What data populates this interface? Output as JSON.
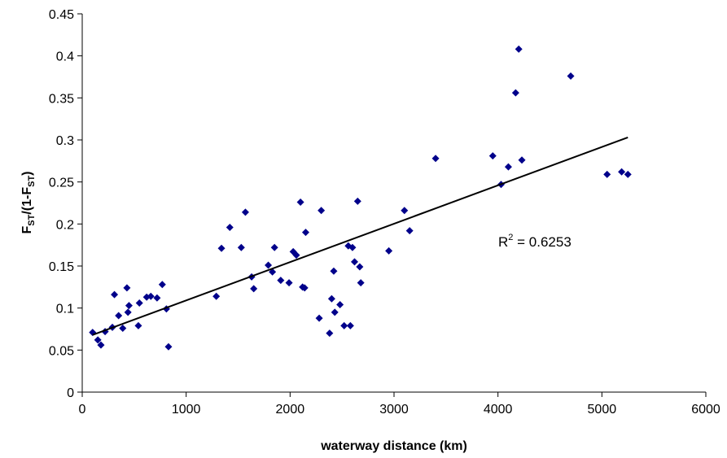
{
  "chart_data": {
    "type": "scatter",
    "xlabel": "waterway distance (km)",
    "ylabel_main": "F",
    "ylabel_sub1": "ST",
    "ylabel_mid": "/(1-F",
    "ylabel_sub2": "ST",
    "ylabel_end": ")",
    "xlim": [
      0,
      6000
    ],
    "ylim": [
      0,
      0.45
    ],
    "x_ticks": [
      "0",
      "1000",
      "2000",
      "3000",
      "4000",
      "5000",
      "6000"
    ],
    "y_ticks": [
      "0",
      "0.05",
      "0.1",
      "0.15",
      "0.2",
      "0.25",
      "0.3",
      "0.35",
      "0.4",
      "0.45"
    ],
    "grid": false,
    "marker": "diamond",
    "marker_color": "#00008B",
    "line_color": "#000000",
    "annotation_main": "R",
    "annotation_sup": "2",
    "annotation_rest": " = 0.6253",
    "trendline": {
      "x": [
        100,
        5250
      ],
      "y": [
        0.068,
        0.303
      ]
    },
    "points": [
      {
        "x": 100,
        "y": 0.071
      },
      {
        "x": 150,
        "y": 0.062
      },
      {
        "x": 180,
        "y": 0.056
      },
      {
        "x": 220,
        "y": 0.072
      },
      {
        "x": 290,
        "y": 0.077
      },
      {
        "x": 310,
        "y": 0.116
      },
      {
        "x": 350,
        "y": 0.091
      },
      {
        "x": 390,
        "y": 0.076
      },
      {
        "x": 430,
        "y": 0.124
      },
      {
        "x": 440,
        "y": 0.095
      },
      {
        "x": 450,
        "y": 0.103
      },
      {
        "x": 540,
        "y": 0.079
      },
      {
        "x": 550,
        "y": 0.106
      },
      {
        "x": 620,
        "y": 0.113
      },
      {
        "x": 660,
        "y": 0.114
      },
      {
        "x": 720,
        "y": 0.112
      },
      {
        "x": 770,
        "y": 0.128
      },
      {
        "x": 810,
        "y": 0.099
      },
      {
        "x": 830,
        "y": 0.054
      },
      {
        "x": 1290,
        "y": 0.114
      },
      {
        "x": 1340,
        "y": 0.171
      },
      {
        "x": 1420,
        "y": 0.196
      },
      {
        "x": 1530,
        "y": 0.172
      },
      {
        "x": 1570,
        "y": 0.214
      },
      {
        "x": 1630,
        "y": 0.137
      },
      {
        "x": 1650,
        "y": 0.123
      },
      {
        "x": 1790,
        "y": 0.151
      },
      {
        "x": 1830,
        "y": 0.143
      },
      {
        "x": 1850,
        "y": 0.172
      },
      {
        "x": 1910,
        "y": 0.133
      },
      {
        "x": 1990,
        "y": 0.13
      },
      {
        "x": 2030,
        "y": 0.167
      },
      {
        "x": 2060,
        "y": 0.163
      },
      {
        "x": 2100,
        "y": 0.226
      },
      {
        "x": 2120,
        "y": 0.125
      },
      {
        "x": 2140,
        "y": 0.124
      },
      {
        "x": 2150,
        "y": 0.19
      },
      {
        "x": 2280,
        "y": 0.088
      },
      {
        "x": 2300,
        "y": 0.216
      },
      {
        "x": 2380,
        "y": 0.07
      },
      {
        "x": 2400,
        "y": 0.111
      },
      {
        "x": 2420,
        "y": 0.144
      },
      {
        "x": 2430,
        "y": 0.095
      },
      {
        "x": 2480,
        "y": 0.104
      },
      {
        "x": 2520,
        "y": 0.079
      },
      {
        "x": 2560,
        "y": 0.174
      },
      {
        "x": 2580,
        "y": 0.079
      },
      {
        "x": 2600,
        "y": 0.172
      },
      {
        "x": 2620,
        "y": 0.155
      },
      {
        "x": 2650,
        "y": 0.227
      },
      {
        "x": 2670,
        "y": 0.149
      },
      {
        "x": 2680,
        "y": 0.13
      },
      {
        "x": 2950,
        "y": 0.168
      },
      {
        "x": 3100,
        "y": 0.216
      },
      {
        "x": 3150,
        "y": 0.192
      },
      {
        "x": 3400,
        "y": 0.278
      },
      {
        "x": 3950,
        "y": 0.281
      },
      {
        "x": 4030,
        "y": 0.247
      },
      {
        "x": 4100,
        "y": 0.268
      },
      {
        "x": 4170,
        "y": 0.356
      },
      {
        "x": 4200,
        "y": 0.408
      },
      {
        "x": 4230,
        "y": 0.276
      },
      {
        "x": 4700,
        "y": 0.376
      },
      {
        "x": 5050,
        "y": 0.259
      },
      {
        "x": 5190,
        "y": 0.262
      },
      {
        "x": 5250,
        "y": 0.259
      }
    ]
  }
}
